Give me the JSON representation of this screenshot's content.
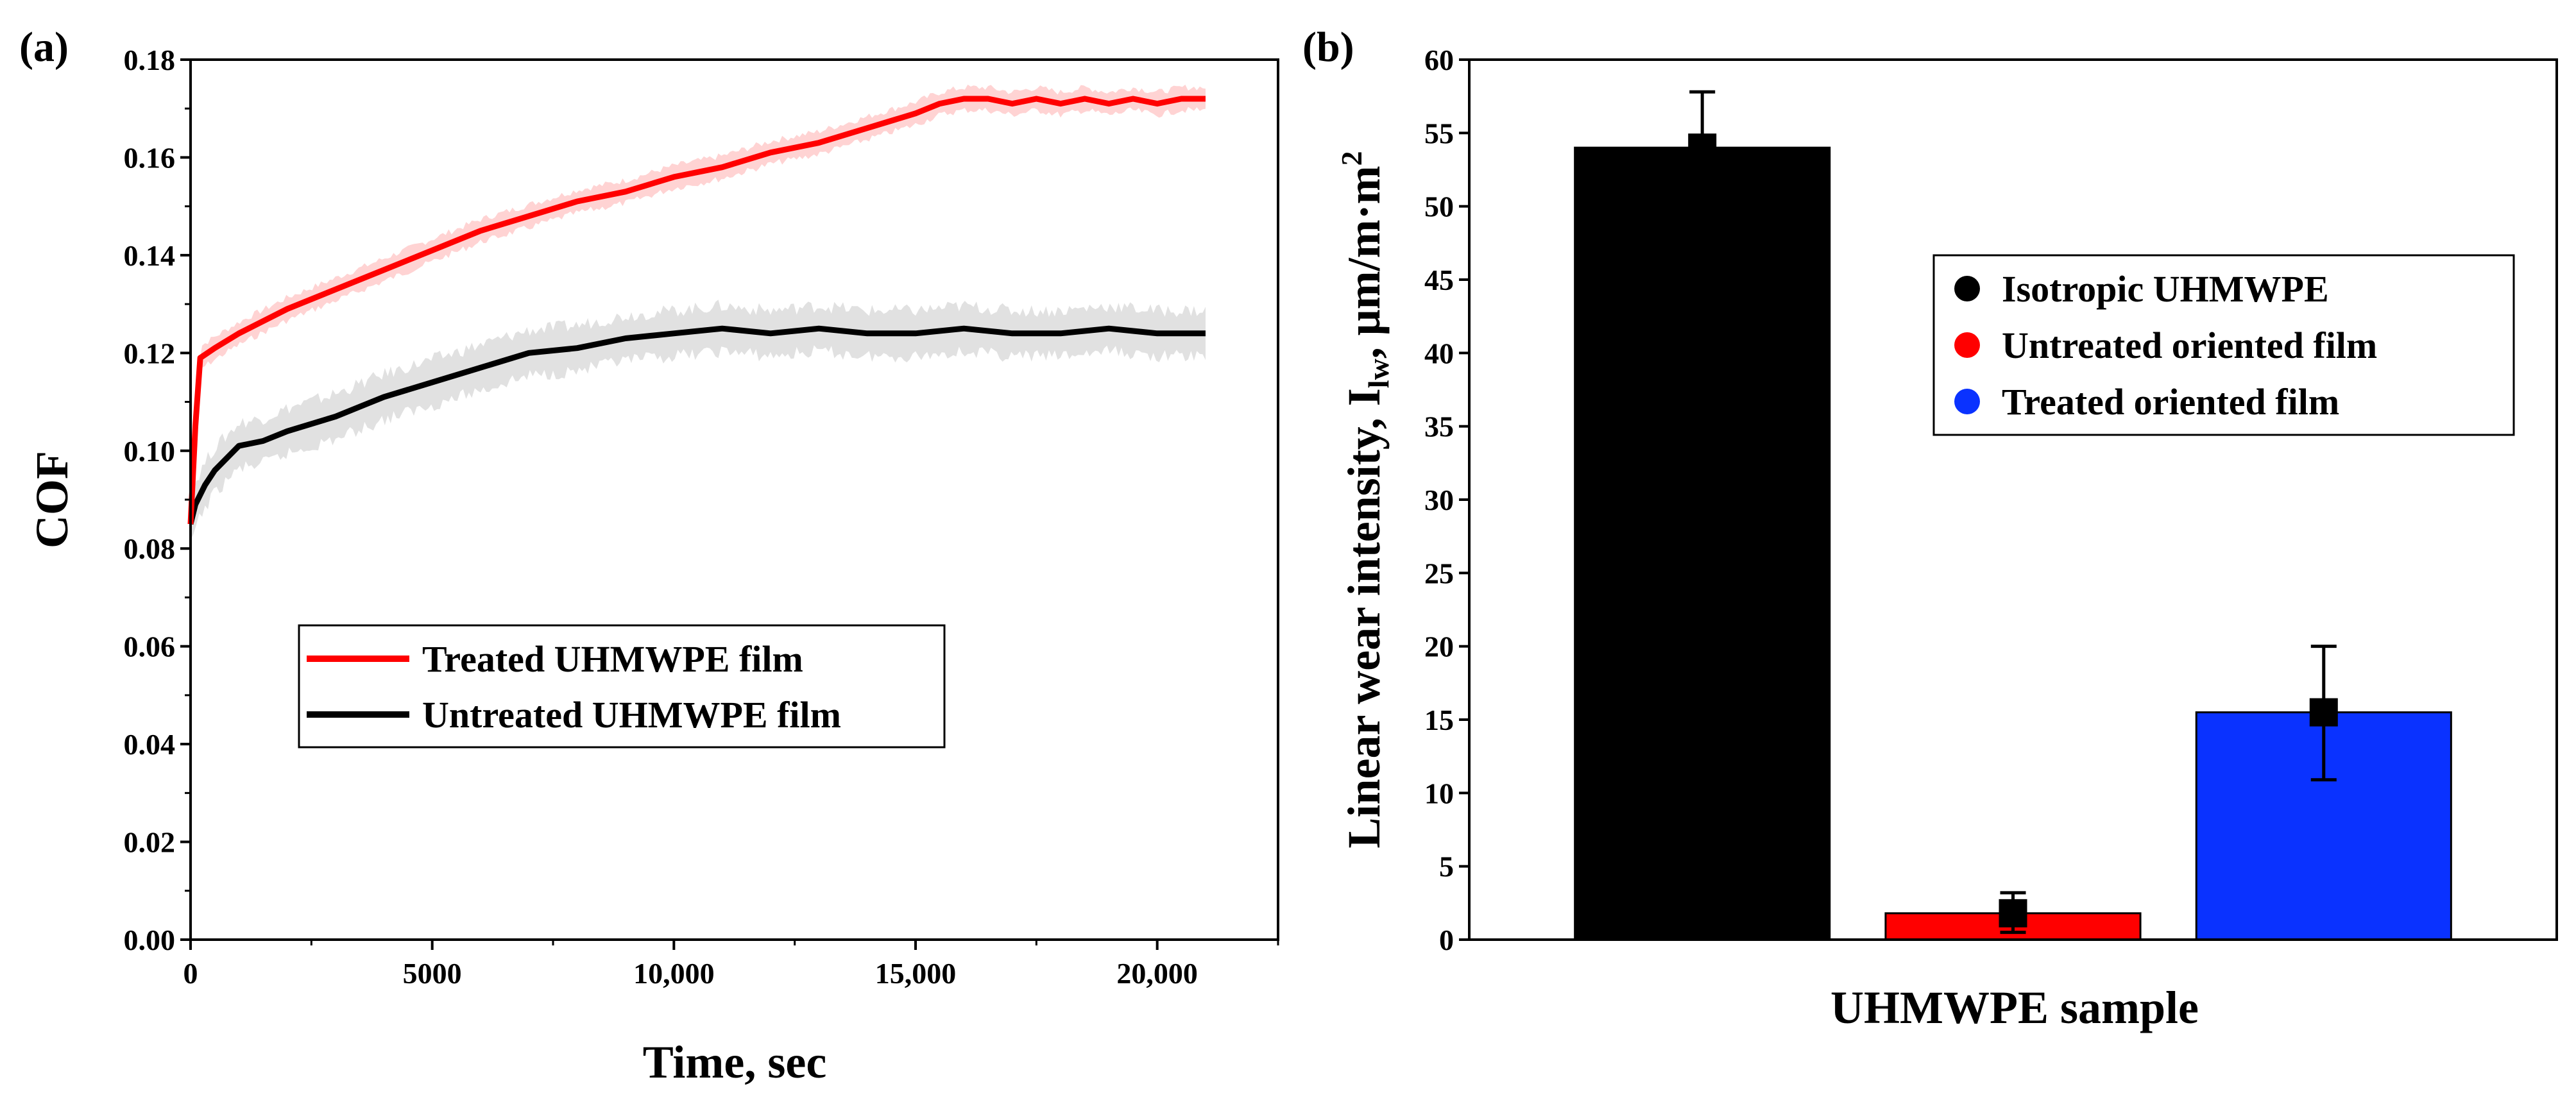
{
  "chart_data": [
    {
      "panel_label": "(a)",
      "type": "line",
      "title": "",
      "xlabel": "Time, sec",
      "ylabel": "COF",
      "xlim": [
        0,
        22500
      ],
      "ylim": [
        0.0,
        0.18
      ],
      "xticks": [
        0,
        5000,
        10000,
        15000,
        20000
      ],
      "xtick_labels": [
        "0",
        "5000",
        "10,000",
        "15,000",
        "20,000"
      ],
      "yticks": [
        0.0,
        0.02,
        0.04,
        0.06,
        0.08,
        0.1,
        0.12,
        0.14,
        0.16,
        0.18
      ],
      "ytick_labels": [
        "0.00",
        "0.02",
        "0.04",
        "0.06",
        "0.08",
        "0.10",
        "0.12",
        "0.14",
        "0.16",
        "0.18"
      ],
      "legend_position": "lower-center",
      "series": [
        {
          "name": "Treated UHMWPE film",
          "color": "#ff0000",
          "band_color": "#ffc8c8",
          "band_halfwidth": 0.003,
          "x": [
            0,
            100,
            200,
            500,
            1000,
            2000,
            3000,
            4000,
            5000,
            6000,
            7000,
            8000,
            9000,
            10000,
            11000,
            12000,
            13000,
            14000,
            15000,
            15500,
            16000,
            16500,
            17000,
            17500,
            18000,
            18500,
            19000,
            19500,
            20000,
            20500,
            21000
          ],
          "y": [
            0.085,
            0.105,
            0.119,
            0.121,
            0.124,
            0.129,
            0.133,
            0.137,
            0.141,
            0.145,
            0.148,
            0.151,
            0.153,
            0.156,
            0.158,
            0.161,
            0.163,
            0.166,
            0.169,
            0.171,
            0.172,
            0.172,
            0.171,
            0.172,
            0.171,
            0.172,
            0.171,
            0.172,
            0.171,
            0.172,
            0.172
          ]
        },
        {
          "name": "Untreated UHMWPE film",
          "color": "#000000",
          "band_color": "#d9d9d9",
          "band_halfwidth": 0.006,
          "x": [
            0,
            100,
            300,
            500,
            800,
            1000,
            1500,
            2000,
            3000,
            4000,
            5000,
            6000,
            7000,
            8000,
            9000,
            10000,
            11000,
            12000,
            13000,
            14000,
            15000,
            16000,
            17000,
            18000,
            19000,
            20000,
            21000
          ],
          "y": [
            0.085,
            0.089,
            0.093,
            0.096,
            0.099,
            0.101,
            0.102,
            0.104,
            0.107,
            0.111,
            0.114,
            0.117,
            0.12,
            0.121,
            0.123,
            0.124,
            0.125,
            0.124,
            0.125,
            0.124,
            0.124,
            0.125,
            0.124,
            0.124,
            0.125,
            0.124,
            0.124
          ]
        }
      ]
    },
    {
      "panel_label": "(b)",
      "type": "bar",
      "title": "",
      "xlabel": "UHMWPE sample",
      "ylabel_main": "Linear wear intensity, I",
      "ylabel_sub": "lw",
      "ylabel_tail": ", μm/m·m",
      "ylabel_sup": "2",
      "ylim": [
        0,
        60
      ],
      "yticks": [
        0,
        5,
        10,
        15,
        20,
        25,
        30,
        35,
        40,
        45,
        50,
        55,
        60
      ],
      "ytick_labels": [
        "0",
        "5",
        "10",
        "15",
        "20",
        "25",
        "30",
        "35",
        "40",
        "45",
        "50",
        "55",
        "60"
      ],
      "categories": [
        "Isotropic UHMWPE",
        "Untreated oriented film",
        "Treated oriented film"
      ],
      "values": [
        54,
        1.8,
        15.5
      ],
      "errors_low": [
        50.0,
        0.5,
        10.9
      ],
      "errors_high": [
        57.8,
        3.2,
        20.0
      ],
      "colors": [
        "#000000",
        "#ff0000",
        "#0a32ff"
      ],
      "legend_position": "upper-right"
    }
  ]
}
